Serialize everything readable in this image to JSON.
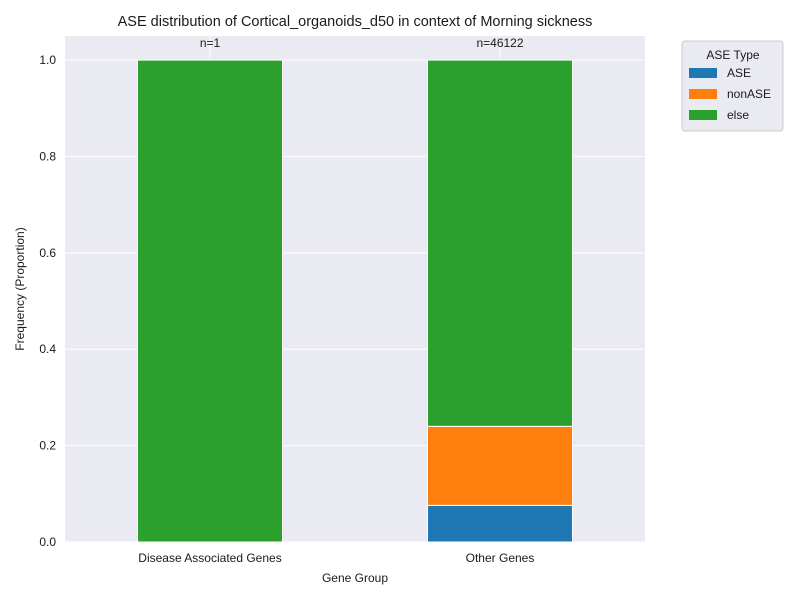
{
  "chart_data": {
    "type": "bar",
    "stacked": true,
    "title": "ASE distribution of Cortical_organoids_d50 in context of Morning sickness",
    "xlabel": "Gene Group",
    "ylabel": "Frequency (Proportion)",
    "categories": [
      "Disease Associated Genes",
      "Other Genes"
    ],
    "annotations": [
      "n=1",
      "n=46122"
    ],
    "series": [
      {
        "name": "ASE",
        "values": [
          0.0,
          0.076
        ],
        "color": "#1f77b4"
      },
      {
        "name": "nonASE",
        "values": [
          0.0,
          0.164
        ],
        "color": "#ff7f0e"
      },
      {
        "name": "else",
        "values": [
          1.0,
          0.76
        ],
        "color": "#2ca02c"
      }
    ],
    "ylim": [
      0,
      1.05
    ],
    "yticks": [
      0.0,
      0.2,
      0.4,
      0.6,
      0.8,
      1.0
    ],
    "ytick_labels": [
      "0.0",
      "0.2",
      "0.4",
      "0.6",
      "0.8",
      "1.0"
    ],
    "grid": true,
    "legend": {
      "title": "ASE Type",
      "placement": "outside-upper-right"
    },
    "colors": {
      "plot_background": "#eaeaf2",
      "grid": "#ffffff"
    }
  }
}
